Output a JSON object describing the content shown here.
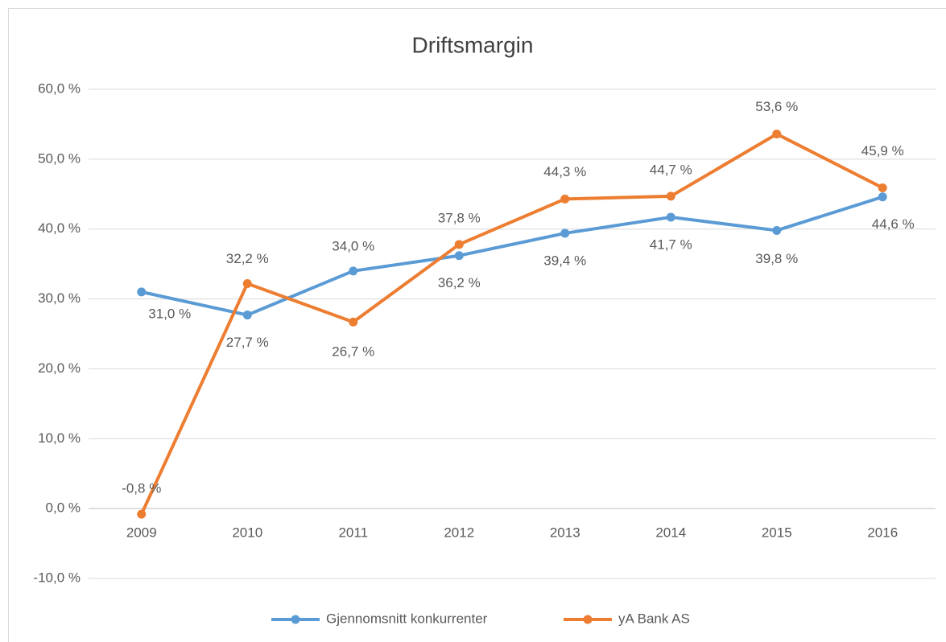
{
  "chart_data": {
    "type": "line",
    "title": "Driftsmargin",
    "categories": [
      "2009",
      "2010",
      "2011",
      "2012",
      "2013",
      "2014",
      "2015",
      "2016"
    ],
    "series": [
      {
        "name": "Gjennomsnitt konkurrenter",
        "color": "#5b9bd5",
        "values": [
          31.0,
          27.7,
          34.0,
          36.2,
          39.4,
          41.7,
          39.8,
          44.6
        ],
        "value_labels": [
          "31,0 %",
          "27,7 %",
          "34,0 %",
          "36,2 %",
          "39,4 %",
          "41,7 %",
          "39,8 %",
          "44,6 %"
        ]
      },
      {
        "name": "yA Bank AS",
        "color": "#ed7d31",
        "values": [
          -0.8,
          32.2,
          26.7,
          37.8,
          44.3,
          44.7,
          53.6,
          45.9
        ],
        "value_labels": [
          "-0,8 %",
          "32,2 %",
          "26,7 %",
          "37,8 %",
          "44,3 %",
          "44,7 %",
          "53,6 %",
          "45,9 %"
        ]
      }
    ],
    "ylim": [
      -10,
      60
    ],
    "yticks": [
      {
        "value": -10,
        "label": "-10,0 %"
      },
      {
        "value": 0,
        "label": "0,0 %"
      },
      {
        "value": 10,
        "label": "10,0 %"
      },
      {
        "value": 20,
        "label": "20,0 %"
      },
      {
        "value": 30,
        "label": "30,0 %"
      },
      {
        "value": 40,
        "label": "40,0 %"
      },
      {
        "value": 50,
        "label": "50,0 %"
      },
      {
        "value": 60,
        "label": "60,0 %"
      }
    ],
    "grid": true,
    "legend": "bottom"
  }
}
